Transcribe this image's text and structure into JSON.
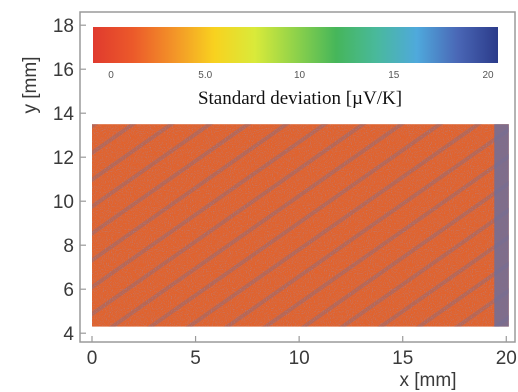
{
  "chart_data": {
    "type": "heatmap",
    "xlabel": "x [mm]",
    "ylabel": "y [mm]",
    "xlim": [
      0,
      21
    ],
    "ylim": [
      3.6,
      18.6
    ],
    "x_ticks": [
      "0",
      "5",
      "10",
      "15",
      "20"
    ],
    "y_ticks": [
      "4",
      "6",
      "8",
      "10",
      "12",
      "14",
      "16",
      "18"
    ],
    "data_extent": {
      "x": [
        0,
        20.7
      ],
      "y": [
        4.3,
        13.5
      ]
    },
    "colorbar": {
      "title": "Standard deviation [µV/K]",
      "range": [
        0,
        20
      ],
      "ticks": [
        "0",
        "5.0",
        "10",
        "15",
        "20"
      ],
      "colors": [
        "#e03a2e",
        "#ec5a2a",
        "#f39428",
        "#f8d21f",
        "#d9ea3a",
        "#8fd24a",
        "#46b65a",
        "#49b99c",
        "#4fa9dc",
        "#4a67b6",
        "#2b3b8a"
      ]
    },
    "description_values": {
      "dominant_value_range": [
        1,
        3
      ],
      "high_value_strip_x": [
        20.0,
        20.7
      ],
      "high_value_diagonal_streaks": true
    }
  }
}
